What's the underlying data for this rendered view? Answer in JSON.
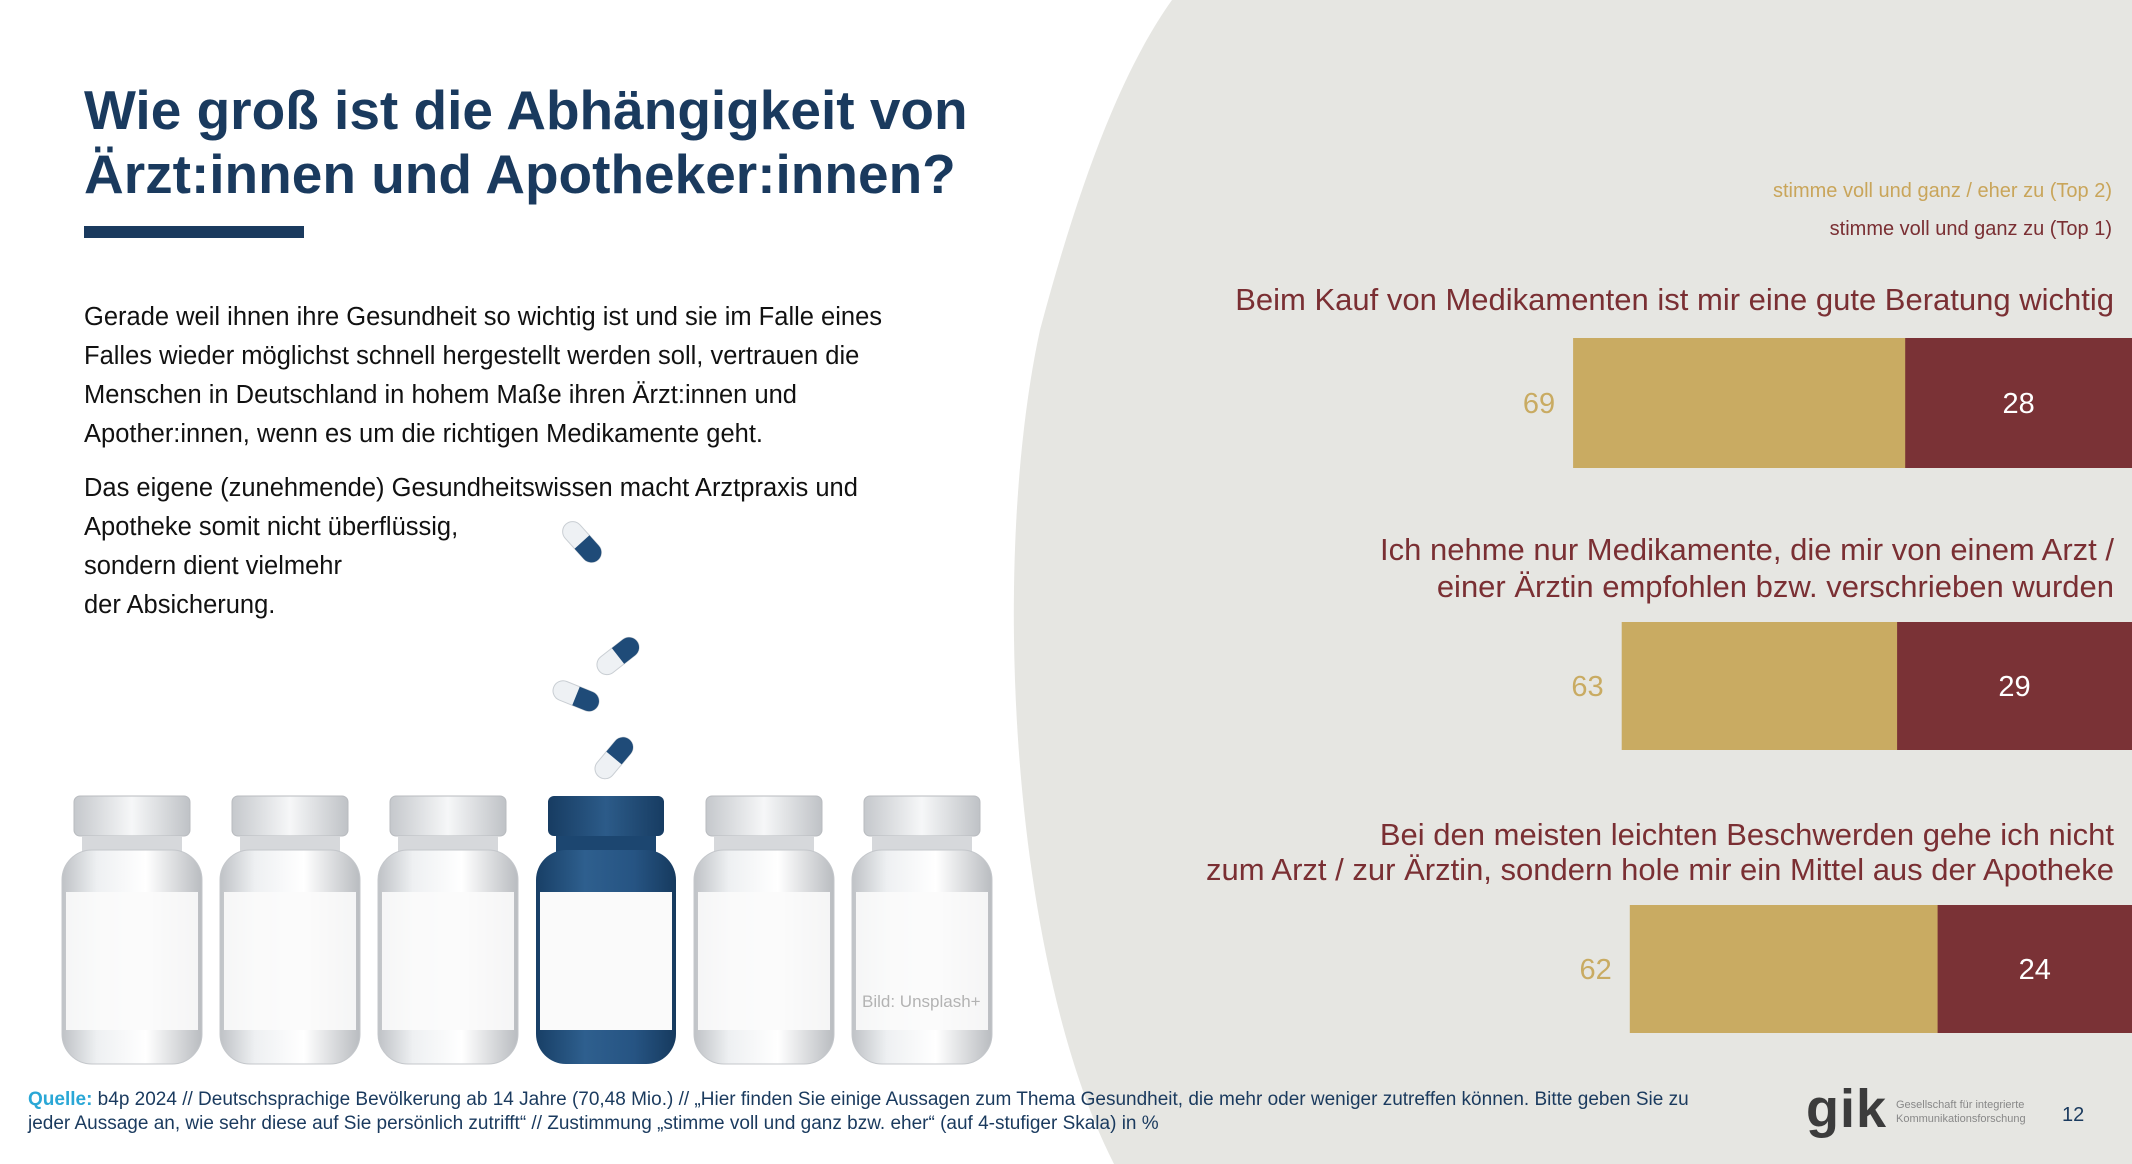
{
  "title": {
    "line1": "Wie groß ist die Abhängigkeit von",
    "line2": "Ärzt:innen und Apotheker:innen?"
  },
  "intro": {
    "p1": [
      "Gerade weil ihnen ihre Gesundheit so wichtig ist und sie im Falle eines",
      "Falles wieder möglichst schnell hergestellt werden soll, vertrauen die",
      "Menschen in Deutschland in hohem Maße ihren Ärzt:innen und",
      "Apother:innen, wenn es um die richtigen Medikamente geht."
    ],
    "p2": [
      "Das eigene (zunehmende) Gesundheitswissen macht Arztpraxis und",
      "Apotheke somit nicht überflüssig,",
      "sondern dient vielmehr",
      "der Absicherung."
    ]
  },
  "image": {
    "credit": "Bild: Unsplash+"
  },
  "colors": {
    "top2": "#c9ab62",
    "top1": "#7a3236",
    "title": "#1a3a5e",
    "label": "#7a2f33",
    "background_shape": "#e6e6e2"
  },
  "chart_data": {
    "type": "bar",
    "orientation": "horizontal",
    "stacked": true,
    "unit": "%",
    "legend_placement": "top-right",
    "grid": false,
    "categories": [
      [
        "Beim Kauf von Medikamenten ist mir eine gute Beratung wichtig"
      ],
      [
        "Ich nehme nur Medikamente, die mir von einem Arzt /",
        "einer Ärztin empfohlen bzw. verschrieben wurden"
      ],
      [
        "Bei den meisten leichten Beschwerden gehe ich nicht",
        "zum Arzt / zur Ärztin, sondern hole mir ein Mittel aus der Apotheke"
      ]
    ],
    "series": [
      {
        "name": "stimme voll und ganz / eher zu (Top 2)",
        "key": "top2",
        "values": [
          69,
          63,
          62
        ]
      },
      {
        "name": "stimme voll und ganz zu (Top 1)",
        "key": "top1",
        "values": [
          28,
          29,
          24
        ]
      }
    ]
  },
  "footer": {
    "source_label": "Quelle:",
    "source_text": " b4p 2024 // Deutschsprachige Bevölkerung ab 14 Jahre (70,48 Mio.) // „Hier finden Sie einige Aussagen zum Thema Gesundheit, die mehr oder weniger zutreffen können. Bitte geben Sie zu",
    "source_text2": "jeder Aussage an, wie sehr diese auf Sie persönlich zutrifft“ // Zustimmung „stimme voll und ganz bzw. eher“ (auf 4-stufiger Skala) in %"
  },
  "logo": {
    "word": "gik",
    "sub1": "Gesellschaft für integrierte",
    "sub2": "Kommunikationsforschung"
  },
  "page_number": "12"
}
